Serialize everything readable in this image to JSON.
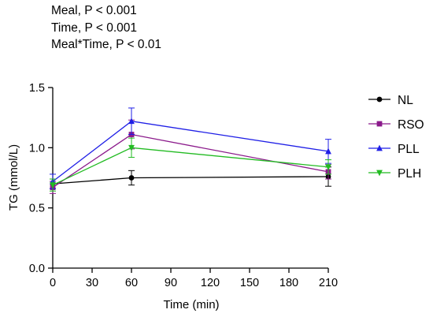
{
  "stats": [
    "Meal, P < 0.001",
    "Time, P < 0.001",
    "Meal*Time, P < 0.01"
  ],
  "chart_data": {
    "type": "line",
    "title": "",
    "xlabel": "Time (min)",
    "ylabel": "TG (mmol/L)",
    "xlim": [
      0,
      210
    ],
    "ylim": [
      0,
      1.5
    ],
    "xticks": [
      0,
      30,
      60,
      90,
      120,
      150,
      180,
      210
    ],
    "yticks": [
      0.0,
      0.5,
      1.0,
      1.5
    ],
    "xtick_labels": [
      "0",
      "30",
      "60",
      "90",
      "120",
      "150",
      "180",
      "210"
    ],
    "ytick_labels": [
      "0.0",
      "0.5",
      "1.0",
      "1.5"
    ],
    "x": [
      0,
      60,
      210
    ],
    "legend_position": "right",
    "grid": false,
    "series": [
      {
        "name": "NL",
        "color": "#000000",
        "marker": "circle",
        "values": [
          0.7,
          0.75,
          0.76
        ],
        "errors": [
          0.04,
          0.06,
          0.08
        ]
      },
      {
        "name": "RSO",
        "color": "#8B1A8B",
        "marker": "square",
        "values": [
          0.67,
          1.11,
          0.8
        ],
        "errors": [
          0.05,
          0.12,
          0.06
        ]
      },
      {
        "name": "PLL",
        "color": "#1F1FE6",
        "marker": "triangle-up",
        "values": [
          0.72,
          1.22,
          0.97
        ],
        "errors": [
          0.06,
          0.11,
          0.1
        ]
      },
      {
        "name": "PLH",
        "color": "#22BB22",
        "marker": "triangle-down",
        "values": [
          0.69,
          1.0,
          0.84
        ],
        "errors": [
          0.05,
          0.08,
          0.06
        ]
      }
    ]
  }
}
